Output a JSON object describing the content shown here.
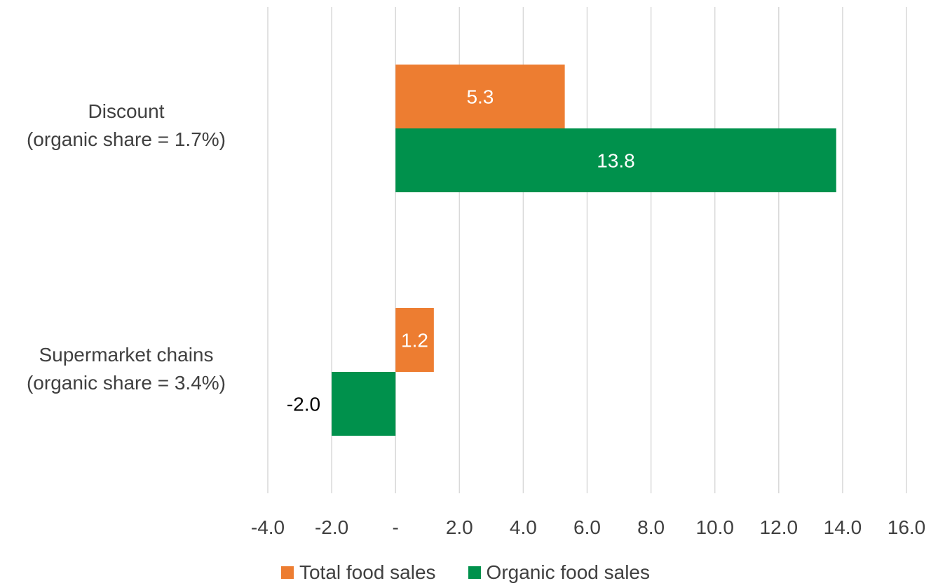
{
  "chart_data": {
    "type": "bar",
    "orientation": "horizontal",
    "categories": [
      {
        "line1": "Discount",
        "line2": "(organic share = 1.7%)"
      },
      {
        "line1": "Supermarket chains",
        "line2": "(organic share = 3.4%)"
      }
    ],
    "series": [
      {
        "name": "Total food sales",
        "color": "#ED7D31",
        "values": [
          5.3,
          1.2
        ],
        "labels": [
          "5.3",
          "1.2"
        ]
      },
      {
        "name": "Organic food sales",
        "color": "#00914C",
        "values": [
          13.8,
          -2.0
        ],
        "labels": [
          "13.8",
          "-2.0"
        ]
      }
    ],
    "xlim": [
      -4.0,
      16.0
    ],
    "xticks": [
      -4,
      -2,
      0,
      2,
      4,
      6,
      8,
      10,
      12,
      14,
      16
    ],
    "xtick_labels": [
      "-4.0",
      "-2.0",
      "-",
      "2.0",
      "4.0",
      "6.0",
      "8.0",
      "10.0",
      "12.0",
      "14.0",
      "16.0"
    ],
    "grid": true,
    "legend_position": "bottom"
  }
}
